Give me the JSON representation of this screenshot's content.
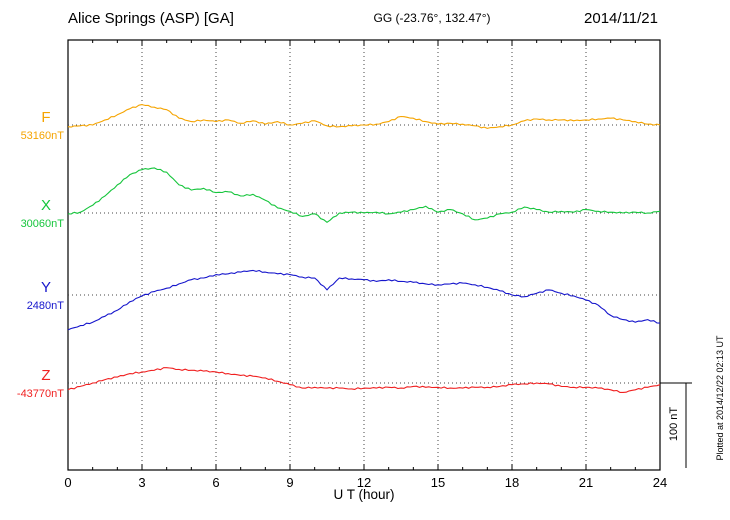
{
  "header": {
    "station": "Alice Springs (ASP)  [GA]",
    "coords": "GG (-23.76°, 132.47°)",
    "date": "2014/11/21"
  },
  "axis": {
    "xlabel": "U T (hour)"
  },
  "scale": {
    "label": "100 nT"
  },
  "footer_note": "Plotted at 2014/12/22 02:13 UT",
  "chart_data": {
    "type": "line",
    "title": "Alice Springs (ASP) [GA] magnetogram 2014/11/21",
    "xlabel": "U T (hour)",
    "x_range": [
      0,
      24
    ],
    "x_ticks": [
      0,
      3,
      6,
      9,
      12,
      15,
      18,
      21,
      24
    ],
    "x_start": 0,
    "x_step": 0.5,
    "scale_bar_nT": 100,
    "grid": "dotted vertical at 3h intervals, dotted horizontal baseline per trace",
    "series": [
      {
        "name": "F",
        "baseline_label": "53160nT",
        "baseline_nT": 53160,
        "color": "#f5a400",
        "offsets_nT": [
          -2,
          -1,
          0,
          6,
          12,
          19,
          24,
          21,
          18,
          8,
          4,
          6,
          4,
          6,
          2,
          5,
          1,
          4,
          0,
          2,
          5,
          -1,
          -2,
          -1,
          0,
          1,
          4,
          10,
          8,
          4,
          1,
          2,
          1,
          -1,
          -4,
          -2,
          0,
          5,
          7,
          6,
          6,
          5,
          6,
          7,
          8,
          6,
          4,
          1,
          0
        ]
      },
      {
        "name": "X",
        "baseline_label": "30060nT",
        "baseline_nT": 30060,
        "color": "#16c53c",
        "offsets_nT": [
          -1,
          1,
          9,
          20,
          33,
          45,
          51,
          53,
          48,
          33,
          27,
          29,
          24,
          25,
          20,
          22,
          15,
          6,
          2,
          -4,
          -1,
          -11,
          0,
          1,
          0,
          1,
          -1,
          1,
          4,
          8,
          1,
          4,
          -1,
          -8,
          -6,
          -1,
          1,
          7,
          4,
          1,
          2,
          1,
          4,
          2,
          1,
          0,
          1,
          0,
          2
        ]
      },
      {
        "name": "Y",
        "baseline_label": "2480nT",
        "baseline_nT": 2480,
        "color": "#1616cc",
        "offsets_nT": [
          -41,
          -36,
          -32,
          -25,
          -18,
          -8,
          -1,
          4,
          8,
          13,
          18,
          20,
          24,
          25,
          27,
          29,
          27,
          25,
          24,
          21,
          20,
          6,
          20,
          19,
          18,
          16,
          18,
          16,
          15,
          13,
          12,
          13,
          14,
          12,
          9,
          5,
          0,
          -2,
          2,
          6,
          2,
          -1,
          -6,
          -12,
          -24,
          -29,
          -32,
          -29,
          -33
        ]
      },
      {
        "name": "Z",
        "baseline_label": "-43770nT",
        "baseline_nT": -43770,
        "color": "#f02020",
        "offsets_nT": [
          -8,
          -4,
          0,
          4,
          7,
          11,
          13,
          15,
          18,
          16,
          15,
          14,
          13,
          11,
          9,
          8,
          6,
          2,
          -2,
          -6,
          -5,
          -6,
          -6,
          -7,
          -6,
          -6,
          -5,
          -6,
          -4,
          -5,
          -5,
          -6,
          -6,
          -5,
          -5,
          -4,
          -2,
          -1,
          0,
          -1,
          -4,
          -5,
          -5,
          -6,
          -8,
          -11,
          -8,
          -5,
          -2
        ]
      }
    ]
  }
}
